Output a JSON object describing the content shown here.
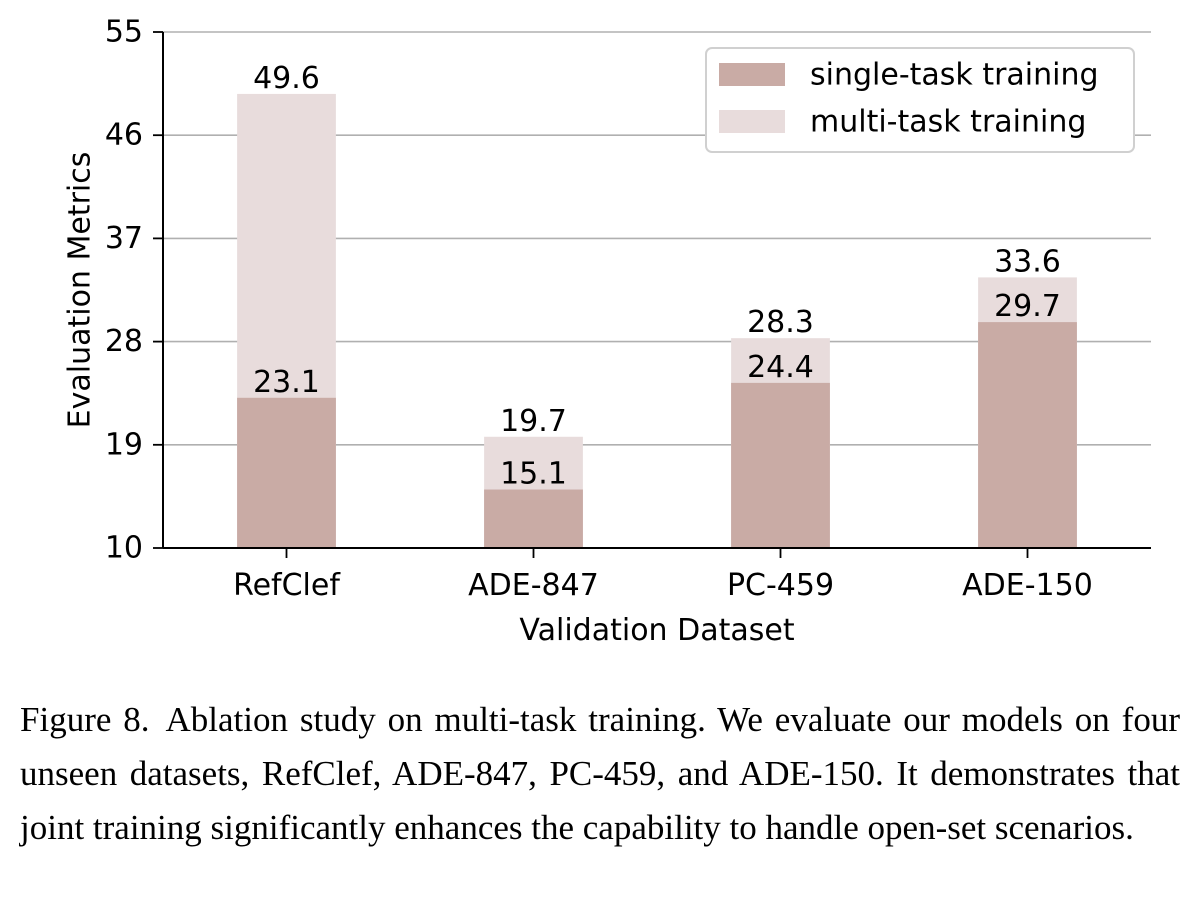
{
  "chart_data": {
    "type": "bar",
    "stacked": "overlay",
    "xlabel": "Validation Dataset",
    "ylabel": "Evaluation Metrics",
    "ylim": [
      10,
      55
    ],
    "yticks": [
      10,
      19,
      28,
      37,
      46,
      55
    ],
    "grid": true,
    "legend_position": "top-right",
    "categories": [
      "RefClef",
      "ADE-847",
      "PC-459",
      "ADE-150"
    ],
    "series": [
      {
        "name": "single-task training",
        "color": "#c9aba5",
        "values": [
          23.1,
          15.1,
          24.4,
          29.7
        ],
        "labels": [
          "23.1",
          "15.1",
          "24.4",
          "29.7"
        ]
      },
      {
        "name": "multi-task training",
        "color": "#e8dcdc",
        "values": [
          49.6,
          19.7,
          28.3,
          33.6
        ],
        "labels": [
          "49.6",
          "19.7",
          "28.3",
          "33.6"
        ]
      }
    ]
  },
  "caption": {
    "label": "Figure 8.",
    "text": "Ablation study on multi-task training. We evaluate our models on four unseen datasets, RefClef, ADE-847, PC-459, and ADE-150. It demonstrates that joint training significantly enhances the capability to handle open-set scenarios."
  }
}
